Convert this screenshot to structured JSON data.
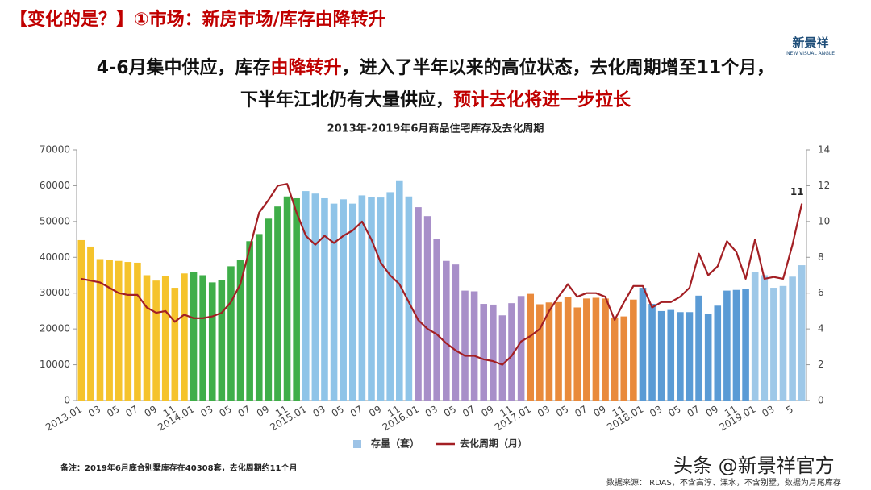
{
  "header": {
    "title": "【变化的是？】①市场：新房市场/库存由降转升",
    "logo": "新景祥",
    "logo_sub": "NEW VISUAL ANGLE"
  },
  "headline": {
    "line1": [
      {
        "text": "4-6月集中供应，库存",
        "color": "#111111"
      },
      {
        "text": "由降转升",
        "color": "#c00000"
      },
      {
        "text": "，进入了半年以来的高位状态，去化周期增至11个月，",
        "color": "#111111"
      }
    ],
    "line2": [
      {
        "text": "下半年江北仍有大量供应，",
        "color": "#111111"
      },
      {
        "text": "预计去化将进一步拉长",
        "color": "#c00000"
      }
    ]
  },
  "chart_data": {
    "type": "combo",
    "title": "2013年-2019年6月商品住宅库存及去化周期",
    "categories": [
      "2013.01",
      null,
      "03",
      null,
      "05",
      null,
      "07",
      null,
      "09",
      null,
      "11",
      null,
      "2014.01",
      null,
      "03",
      null,
      "05",
      null,
      "07",
      null,
      "09",
      null,
      "11",
      null,
      "2015.01",
      null,
      "03",
      null,
      "05",
      null,
      "07",
      null,
      "09",
      null,
      "11",
      null,
      "2016.01",
      null,
      "03",
      null,
      "05",
      null,
      "07",
      null,
      "09",
      null,
      "11",
      null,
      "2017.01",
      null,
      "03",
      null,
      "05",
      null,
      "07",
      null,
      "09",
      null,
      "11",
      null,
      "2018.01",
      null,
      "03",
      null,
      "05",
      null,
      "07",
      null,
      "09",
      null,
      "11",
      null,
      "2019.01",
      null,
      "03",
      null,
      "5",
      null
    ],
    "series": [
      {
        "name": "存量（套）",
        "type": "bar",
        "color": "#9dc3e6",
        "colors": [
          "#f5c32c",
          "#f5c32c",
          "#f5c32c",
          "#f5c32c",
          "#f5c32c",
          "#f5c32c",
          "#f5c32c",
          "#f5c32c",
          "#f5c32c",
          "#f5c32c",
          "#f5c32c",
          "#f5c32c",
          "#3fae49",
          "#3fae49",
          "#3fae49",
          "#3fae49",
          "#3fae49",
          "#3fae49",
          "#3fae49",
          "#3fae49",
          "#3fae49",
          "#3fae49",
          "#3fae49",
          "#3fae49",
          "#8fc4e8",
          "#8fc4e8",
          "#8fc4e8",
          "#8fc4e8",
          "#8fc4e8",
          "#8fc4e8",
          "#8fc4e8",
          "#8fc4e8",
          "#8fc4e8",
          "#8fc4e8",
          "#8fc4e8",
          "#8fc4e8",
          "#a88fc9",
          "#a88fc9",
          "#a88fc9",
          "#a88fc9",
          "#a88fc9",
          "#a88fc9",
          "#a88fc9",
          "#a88fc9",
          "#a88fc9",
          "#a88fc9",
          "#a88fc9",
          "#a88fc9",
          "#e98a3c",
          "#e98a3c",
          "#e98a3c",
          "#e98a3c",
          "#e98a3c",
          "#e98a3c",
          "#e98a3c",
          "#e98a3c",
          "#e98a3c",
          "#e98a3c",
          "#e98a3c",
          "#e98a3c",
          "#5b9bd5",
          "#5b9bd5",
          "#5b9bd5",
          "#5b9bd5",
          "#5b9bd5",
          "#5b9bd5",
          "#5b9bd5",
          "#5b9bd5",
          "#5b9bd5",
          "#5b9bd5",
          "#5b9bd5",
          "#5b9bd5",
          "#9ec8e8",
          "#9ec8e8",
          "#9ec8e8",
          "#9ec8e8",
          "#9ec8e8",
          "#9ec8e8"
        ],
        "values": [
          44800,
          43000,
          39500,
          39300,
          39000,
          38700,
          38500,
          35000,
          33500,
          34800,
          31500,
          35500,
          35800,
          35000,
          33000,
          33700,
          37500,
          39300,
          44500,
          46500,
          50800,
          54200,
          57000,
          56500,
          58500,
          57800,
          56500,
          55000,
          56200,
          55000,
          57300,
          56800,
          56700,
          58200,
          61500,
          57000,
          54000,
          51500,
          45200,
          39000,
          38000,
          30700,
          30500,
          27000,
          26800,
          23800,
          27200,
          29200,
          29800,
          26900,
          27400,
          27500,
          29000,
          26000,
          28500,
          28700,
          28500,
          23200,
          23500,
          28200,
          31500,
          27000,
          25000,
          25300,
          24700,
          24700,
          29300,
          24200,
          26500,
          30700,
          30900,
          31200,
          35800,
          35000,
          31500,
          32000,
          34600,
          37800
        ]
      },
      {
        "name": "去化周期（月）",
        "type": "line",
        "color": "#a31f24",
        "axis": "y2",
        "values": [
          6.8,
          6.7,
          6.6,
          6.3,
          6.0,
          5.9,
          5.9,
          5.2,
          4.9,
          5.0,
          4.4,
          4.8,
          4.6,
          4.6,
          4.7,
          4.9,
          5.5,
          6.5,
          8.5,
          10.5,
          11.2,
          12.0,
          12.1,
          10.5,
          9.2,
          8.7,
          9.2,
          8.8,
          9.2,
          9.5,
          10.0,
          9.0,
          7.7,
          7.0,
          6.5,
          5.5,
          4.5,
          4.0,
          3.7,
          3.2,
          2.8,
          2.5,
          2.5,
          2.3,
          2.2,
          2.0,
          2.5,
          3.3,
          3.6,
          4.0,
          5.0,
          5.8,
          6.5,
          5.8,
          6.0,
          6.0,
          5.8,
          4.5,
          5.5,
          6.4,
          6.4,
          5.2,
          5.5,
          5.5,
          5.8,
          6.3,
          8.2,
          7.0,
          7.5,
          8.9,
          8.3,
          6.8,
          9.0,
          6.8,
          6.9,
          6.8,
          8.7,
          11
        ]
      }
    ],
    "ylim": [
      0,
      70000
    ],
    "yticks": [
      0,
      10000,
      20000,
      30000,
      40000,
      50000,
      60000,
      70000
    ],
    "y2lim": [
      0,
      14
    ],
    "y2ticks": [
      0,
      2,
      4,
      6,
      8,
      10,
      12,
      14
    ]
  },
  "footer": {
    "note": "备注：2019年6月底合别墅库存在40308套，去化周期约11个月",
    "source": "数据来源：  RDAS，不含高淳、溧水，不含别墅，数据为月尾库存",
    "watermark": "头条 @新景祥官方"
  }
}
